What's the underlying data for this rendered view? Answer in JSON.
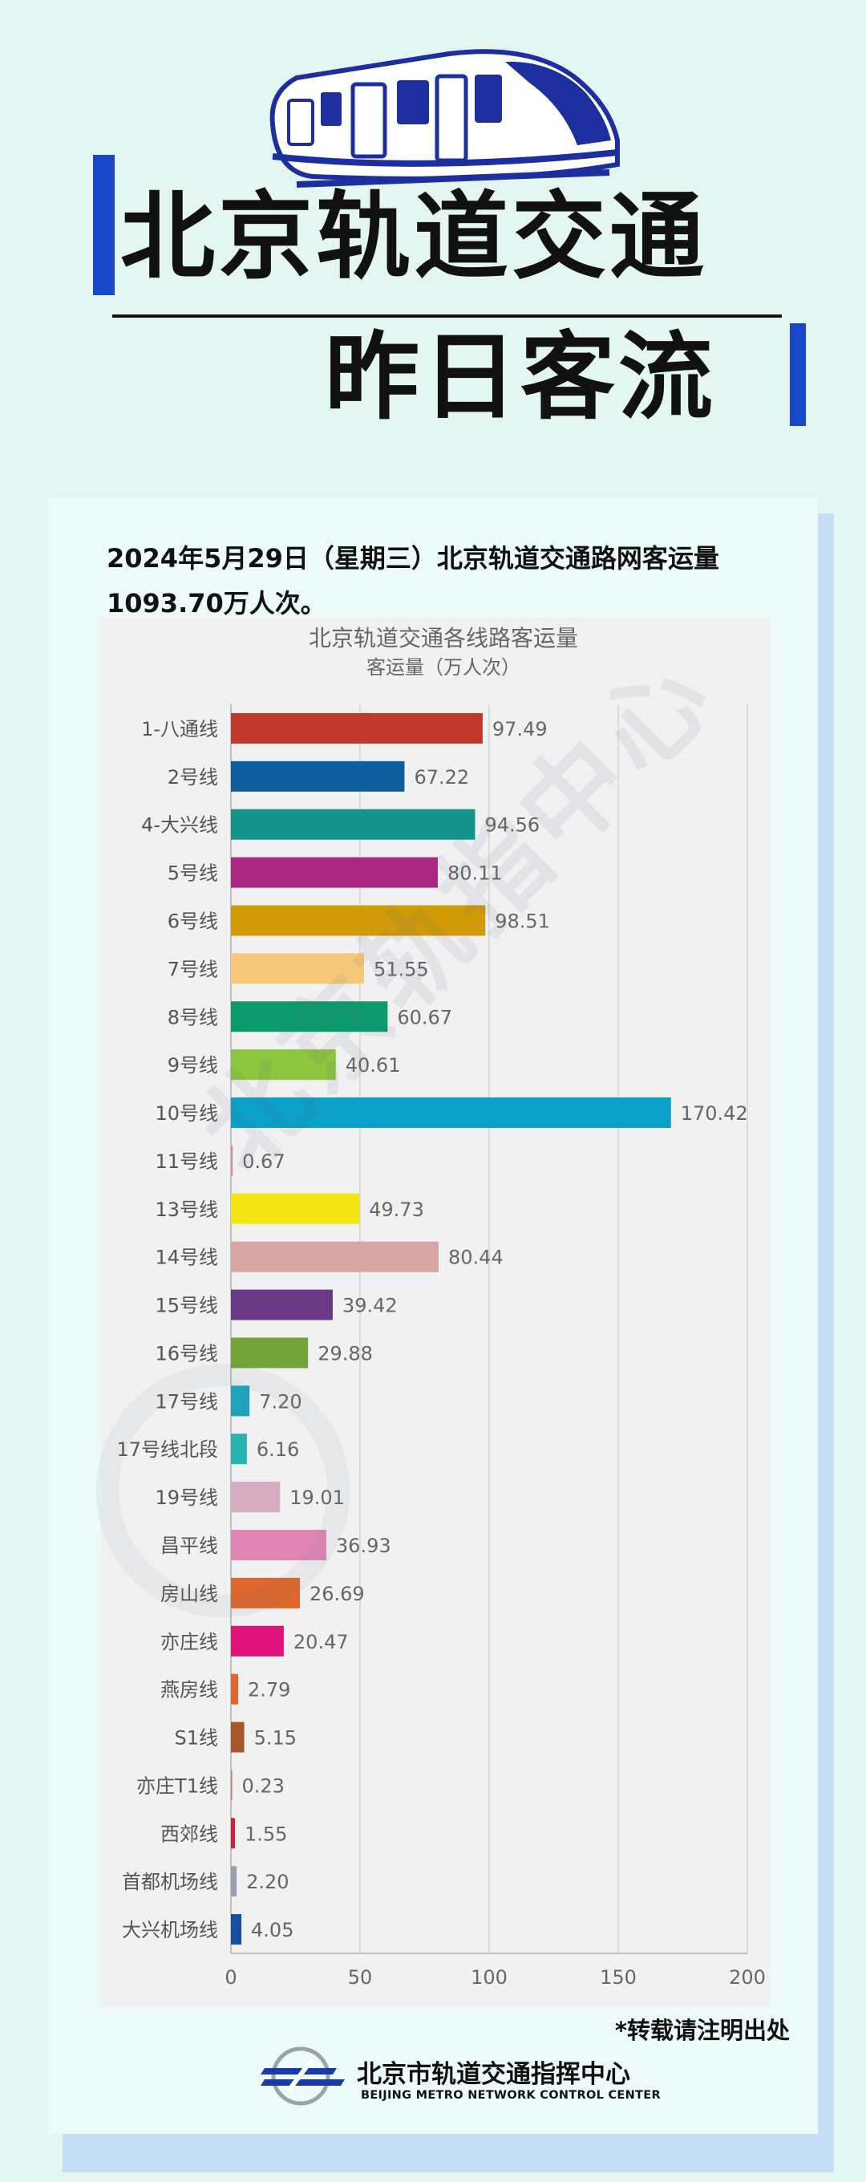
{
  "header": {
    "title_line1": "北京轨道交通",
    "title_line2": "昨日客流"
  },
  "intro": {
    "text": "2024年5月29日（星期三）北京轨道交通路网客运量1093.70万人次。"
  },
  "chart_data": {
    "type": "bar",
    "orientation": "horizontal",
    "title": "北京轨道交通各线路客运量",
    "subtitle": "客运量（万人次）",
    "xlim": [
      0,
      200
    ],
    "x_ticks": [
      0,
      50,
      100,
      150,
      200
    ],
    "grid": true,
    "categories": [
      "1-八通线",
      "2号线",
      "4-大兴线",
      "5号线",
      "6号线",
      "7号线",
      "8号线",
      "9号线",
      "10号线",
      "11号线",
      "13号线",
      "14号线",
      "15号线",
      "16号线",
      "17号线",
      "17号线北段",
      "19号线",
      "昌平线",
      "房山线",
      "亦庄线",
      "燕房线",
      "S1线",
      "亦庄T1线",
      "西郊线",
      "首都机场线",
      "大兴机场线"
    ],
    "values": [
      97.49,
      67.22,
      94.56,
      80.11,
      98.51,
      51.55,
      60.67,
      40.61,
      170.42,
      0.67,
      49.73,
      80.44,
      39.42,
      29.88,
      7.2,
      6.16,
      19.01,
      36.93,
      26.69,
      20.47,
      2.79,
      5.15,
      0.23,
      1.55,
      2.2,
      4.05
    ],
    "value_labels": [
      "97.49",
      "67.22",
      "94.56",
      "80.11",
      "98.51",
      "51.55",
      "60.67",
      "40.61",
      "170.42",
      "0.67",
      "49.73",
      "80.44",
      "39.42",
      "29.88",
      "7.20",
      "6.16",
      "19.01",
      "36.93",
      "26.69",
      "20.47",
      "2.79",
      "5.15",
      "0.23",
      "1.55",
      "2.20",
      "4.05"
    ],
    "colors": [
      "#c0392b",
      "#0f5f9e",
      "#13938a",
      "#a8277f",
      "#d19a07",
      "#f6c877",
      "#0a9a6d",
      "#8cc63e",
      "#0aa0c7",
      "#d88a95",
      "#f2e511",
      "#d6a6a4",
      "#6b3a86",
      "#74a33a",
      "#1ea3ba",
      "#2ab4b0",
      "#d7abc2",
      "#df86b3",
      "#e0662b",
      "#e0127b",
      "#e0662b",
      "#a8552c",
      "#e0707a",
      "#d2203a",
      "#9aa1b2",
      "#1750a3"
    ]
  },
  "footer": {
    "note": "*转载请注明出处",
    "org_cn": "北京市轨道交通指挥中心",
    "org_en": "BEIJING METRO NETWORK CONTROL CENTER"
  },
  "watermark": {
    "text": "北京轨指中心"
  }
}
